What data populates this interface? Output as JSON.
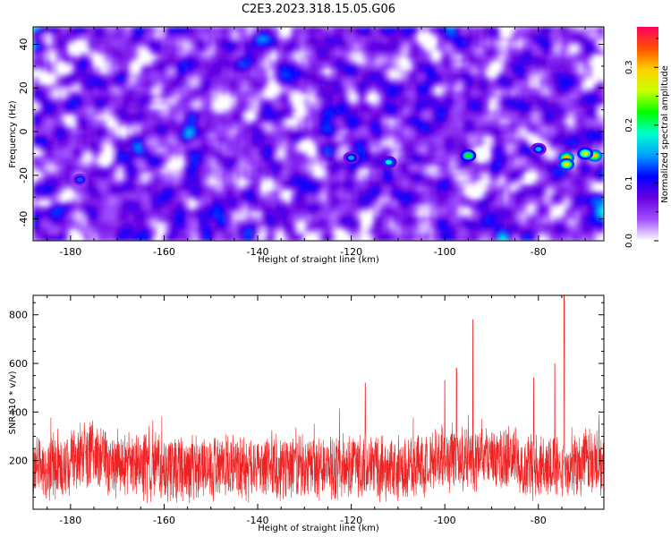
{
  "title": "C2E3.2023.318.15.05.G06",
  "chart_data": [
    {
      "type": "heatmap",
      "xlabel": "Height of straight line (km)",
      "ylabel": "Frequency (Hz)",
      "xlim": [
        -188,
        -66
      ],
      "ylim": [
        -50,
        48
      ],
      "x_ticks": [
        -180,
        -160,
        -140,
        -120,
        -100,
        -80
      ],
      "y_ticks": [
        -40,
        -20,
        0,
        20,
        40
      ],
      "colorbar": {
        "label": "Normalized spectral amplitude",
        "range": [
          0.0,
          0.37
        ],
        "ticks": [
          0.0,
          0.1,
          0.2,
          0.3
        ],
        "colors": [
          "#ffffff",
          "#a050ff",
          "#6a00e0",
          "#0000ff",
          "#00a0ff",
          "#00ffcc",
          "#00ff00",
          "#c8ff00",
          "#ffd000",
          "#ff5000",
          "#ff0060"
        ]
      },
      "hotspots": [
        {
          "x": -74,
          "y": -12,
          "value": 0.3
        },
        {
          "x": -74,
          "y": -15,
          "value": 0.28
        },
        {
          "x": -68,
          "y": -11,
          "value": 0.3
        },
        {
          "x": -70,
          "y": -10,
          "value": 0.26
        },
        {
          "x": -95,
          "y": -11,
          "value": 0.22
        },
        {
          "x": -112,
          "y": -14,
          "value": 0.18
        },
        {
          "x": -120,
          "y": -12,
          "value": 0.15
        },
        {
          "x": -178,
          "y": -22,
          "value": 0.13
        },
        {
          "x": -80,
          "y": -8,
          "value": 0.15
        }
      ],
      "background_level": 0.05
    },
    {
      "type": "line",
      "xlabel": "Height of straight line (km)",
      "ylabel": "SNR (10 * v/v)",
      "xlim": [
        -188,
        -66
      ],
      "ylim": [
        0,
        880
      ],
      "x_ticks": [
        -180,
        -160,
        -140,
        -120,
        -100,
        -80
      ],
      "y_ticks": [
        200,
        400,
        600,
        800
      ],
      "color": "#ee2222",
      "mean": 170,
      "peaks": [
        {
          "x": -74.5,
          "y": 880
        },
        {
          "x": -94,
          "y": 780
        },
        {
          "x": -76.5,
          "y": 600
        },
        {
          "x": -97.5,
          "y": 580
        },
        {
          "x": -117,
          "y": 520
        },
        {
          "x": -81,
          "y": 540
        },
        {
          "x": -100,
          "y": 530
        }
      ]
    }
  ]
}
